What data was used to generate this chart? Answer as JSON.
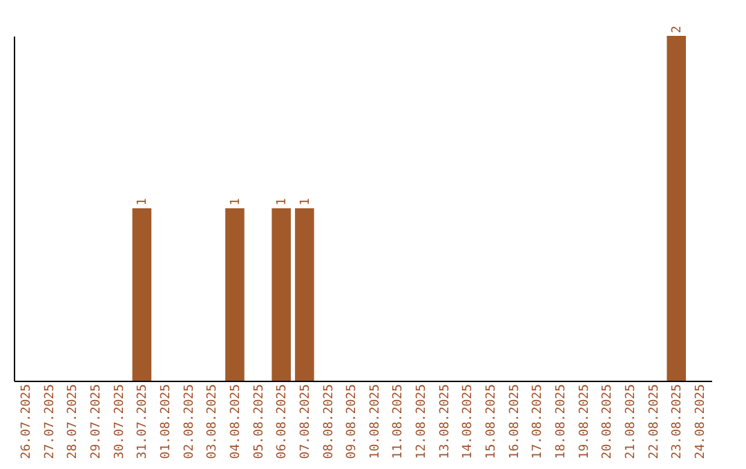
{
  "chart_data": {
    "type": "bar",
    "categories": [
      "26.07.2025",
      "27.07.2025",
      "28.07.2025",
      "29.07.2025",
      "30.07.2025",
      "31.07.2025",
      "01.08.2025",
      "02.08.2025",
      "03.08.2025",
      "04.08.2025",
      "05.08.2025",
      "06.08.2025",
      "07.08.2025",
      "08.08.2025",
      "09.08.2025",
      "10.08.2025",
      "11.08.2025",
      "12.08.2025",
      "13.08.2025",
      "14.08.2025",
      "15.08.2025",
      "16.08.2025",
      "17.08.2025",
      "18.08.2025",
      "19.08.2025",
      "20.08.2025",
      "21.08.2025",
      "22.08.2025",
      "23.08.2025",
      "24.08.2025"
    ],
    "values": [
      0,
      0,
      0,
      0,
      0,
      1,
      0,
      0,
      0,
      1,
      0,
      1,
      1,
      0,
      0,
      0,
      0,
      0,
      0,
      0,
      0,
      0,
      0,
      0,
      0,
      0,
      0,
      0,
      2,
      0
    ],
    "value_labels": [
      null,
      null,
      null,
      null,
      null,
      "1",
      null,
      null,
      null,
      "1",
      null,
      "1",
      "1",
      null,
      null,
      null,
      null,
      null,
      null,
      null,
      null,
      null,
      null,
      null,
      null,
      null,
      null,
      null,
      "2",
      null
    ],
    "color": "#a25a2a",
    "ylim": [
      0,
      2
    ],
    "tick_labels": "x",
    "grid": false
  }
}
